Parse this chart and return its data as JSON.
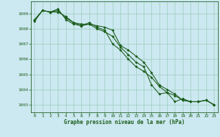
{
  "xlabel": "Graphe pression niveau de la mer (hPa)",
  "background_color": "#cce8f0",
  "grid_color": "#99ccbb",
  "line_color": "#1a5c1a",
  "marker_color": "#1a5c1a",
  "xlim": [
    -0.5,
    23.5
  ],
  "ylim": [
    1002.5,
    1009.8
  ],
  "yticks": [
    1003,
    1004,
    1005,
    1006,
    1007,
    1008,
    1009
  ],
  "xticks": [
    0,
    1,
    2,
    3,
    4,
    5,
    6,
    7,
    8,
    9,
    10,
    11,
    12,
    13,
    14,
    15,
    16,
    17,
    18,
    19,
    20,
    21,
    22,
    23
  ],
  "series": [
    [
      1008.6,
      1009.2,
      1009.1,
      1009.1,
      1008.8,
      1008.4,
      1008.3,
      1008.3,
      1008.2,
      1008.1,
      1007.9,
      1006.9,
      1006.6,
      1006.2,
      1005.8,
      1005.1,
      1004.3,
      1004.0,
      1003.7,
      1003.3,
      1003.2,
      1003.2,
      1003.3,
      1003.0
    ],
    [
      1008.6,
      1009.2,
      1009.1,
      1009.3,
      1008.6,
      1008.3,
      1008.2,
      1008.4,
      1008.1,
      1007.9,
      1007.0,
      1006.6,
      1006.0,
      1005.5,
      1005.2,
      1004.8,
      1004.2,
      1003.8,
      1003.2,
      1003.4,
      1003.2,
      1003.2,
      1003.3,
      1003.0
    ],
    [
      1008.5,
      1009.2,
      1009.1,
      1009.2,
      1008.7,
      1008.4,
      1008.2,
      1008.3,
      1008.0,
      1007.8,
      1007.5,
      1006.8,
      1006.3,
      1005.8,
      1005.5,
      1004.3,
      1003.7,
      1003.8,
      1003.6,
      1003.3,
      1003.2,
      1003.2,
      1003.3,
      1003.0
    ]
  ]
}
